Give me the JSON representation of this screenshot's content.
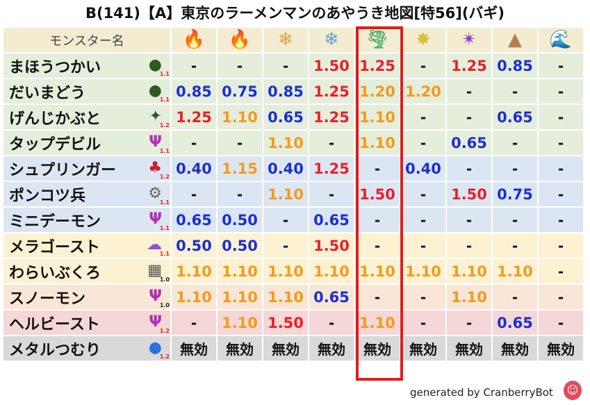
{
  "title": "B(141)【A】東京のラーメンマンのあやうき地図[特56](バギ)",
  "header": {
    "name_label": "モンスター名",
    "elements": [
      {
        "icon": "fire-ball-icon",
        "glyph": "🔥",
        "color": "#e8452a"
      },
      {
        "icon": "fire-icon",
        "glyph": "🔥",
        "color": "#e8452a"
      },
      {
        "icon": "ice-crystal-icon",
        "glyph": "❄",
        "color": "#f0a03a"
      },
      {
        "icon": "snowflake-icon",
        "glyph": "❄",
        "color": "#6aa2d8"
      },
      {
        "icon": "tornado-icon",
        "glyph": "🌪",
        "color": "#4fb06c"
      },
      {
        "icon": "light-burst-icon",
        "glyph": "✸",
        "color": "#d9c23a"
      },
      {
        "icon": "dark-swirl-icon",
        "glyph": "✴",
        "color": "#8a35c8"
      },
      {
        "icon": "rock-icon",
        "glyph": "▲",
        "color": "#b08050"
      },
      {
        "icon": "wave-icon",
        "glyph": "🌊",
        "color": "#2a6fd6"
      }
    ]
  },
  "rows": [
    {
      "name": "まほうつかい",
      "icon": "green-hood-icon",
      "glyph": "●",
      "icon_color": "#2d5a1e",
      "level": "1.1",
      "level_color": "red",
      "bg": "green",
      "cells": [
        {
          "t": "-",
          "c": "dash"
        },
        {
          "t": "-",
          "c": "dash"
        },
        {
          "t": "-",
          "c": "dash"
        },
        {
          "t": "1.50",
          "c": "red"
        },
        {
          "t": "1.25",
          "c": "red"
        },
        {
          "t": "-",
          "c": "dash"
        },
        {
          "t": "1.25",
          "c": "red"
        },
        {
          "t": "0.85",
          "c": "blue"
        },
        {
          "t": "-",
          "c": "dash"
        }
      ]
    },
    {
      "name": "だいまどう",
      "icon": "green-hood-icon",
      "glyph": "●",
      "icon_color": "#2d5a1e",
      "level": "1.1",
      "level_color": "red",
      "bg": "green",
      "cells": [
        {
          "t": "0.85",
          "c": "blue"
        },
        {
          "t": "0.75",
          "c": "blue"
        },
        {
          "t": "0.85",
          "c": "blue"
        },
        {
          "t": "1.25",
          "c": "red"
        },
        {
          "t": "1.20",
          "c": "orange"
        },
        {
          "t": "1.20",
          "c": "orange"
        },
        {
          "t": "-",
          "c": "dash"
        },
        {
          "t": "-",
          "c": "dash"
        },
        {
          "t": "-",
          "c": "dash"
        }
      ]
    },
    {
      "name": "げんじかぶと",
      "icon": "beetle-icon",
      "glyph": "✦",
      "icon_color": "#2d5a40",
      "level": "1.2",
      "level_color": "red",
      "bg": "green",
      "cells": [
        {
          "t": "1.25",
          "c": "red"
        },
        {
          "t": "1.10",
          "c": "orange"
        },
        {
          "t": "0.65",
          "c": "blue"
        },
        {
          "t": "1.25",
          "c": "red"
        },
        {
          "t": "1.10",
          "c": "orange"
        },
        {
          "t": "-",
          "c": "dash"
        },
        {
          "t": "-",
          "c": "dash"
        },
        {
          "t": "0.65",
          "c": "blue"
        },
        {
          "t": "-",
          "c": "dash"
        }
      ]
    },
    {
      "name": "タップデビル",
      "icon": "trident-icon",
      "glyph": "Ψ",
      "icon_color": "#b030b0",
      "level": "1.1",
      "level_color": "red",
      "bg": "green",
      "cells": [
        {
          "t": "-",
          "c": "dash"
        },
        {
          "t": "-",
          "c": "dash"
        },
        {
          "t": "1.10",
          "c": "orange"
        },
        {
          "t": "-",
          "c": "dash"
        },
        {
          "t": "1.10",
          "c": "orange"
        },
        {
          "t": "-",
          "c": "dash"
        },
        {
          "t": "0.65",
          "c": "blue"
        },
        {
          "t": "-",
          "c": "dash"
        },
        {
          "t": "-",
          "c": "dash"
        }
      ]
    },
    {
      "name": "シュプリンガー",
      "icon": "dragon-icon",
      "glyph": "♣",
      "icon_color": "#c8202a",
      "level": "1.2",
      "level_color": "red",
      "bg": "blue",
      "cells": [
        {
          "t": "0.40",
          "c": "blue"
        },
        {
          "t": "1.15",
          "c": "orange"
        },
        {
          "t": "0.40",
          "c": "blue"
        },
        {
          "t": "1.25",
          "c": "red"
        },
        {
          "t": "-",
          "c": "dash"
        },
        {
          "t": "0.40",
          "c": "blue"
        },
        {
          "t": "-",
          "c": "dash"
        },
        {
          "t": "-",
          "c": "dash"
        },
        {
          "t": "-",
          "c": "dash"
        }
      ]
    },
    {
      "name": "ポンコツ兵",
      "icon": "gear-icon",
      "glyph": "⚙",
      "icon_color": "#666666",
      "level": "1.1",
      "level_color": "red",
      "bg": "blue",
      "cells": [
        {
          "t": "-",
          "c": "dash"
        },
        {
          "t": "-",
          "c": "dash"
        },
        {
          "t": "1.10",
          "c": "orange"
        },
        {
          "t": "-",
          "c": "dash"
        },
        {
          "t": "1.50",
          "c": "red"
        },
        {
          "t": "-",
          "c": "dash"
        },
        {
          "t": "1.50",
          "c": "red"
        },
        {
          "t": "0.75",
          "c": "blue"
        },
        {
          "t": "-",
          "c": "dash"
        }
      ]
    },
    {
      "name": "ミニデーモン",
      "icon": "trident-icon",
      "glyph": "Ψ",
      "icon_color": "#b030b0",
      "level": "1.1",
      "level_color": "red",
      "bg": "blue",
      "cells": [
        {
          "t": "0.65",
          "c": "blue"
        },
        {
          "t": "0.50",
          "c": "blue"
        },
        {
          "t": "-",
          "c": "dash"
        },
        {
          "t": "0.65",
          "c": "blue"
        },
        {
          "t": "-",
          "c": "dash"
        },
        {
          "t": "-",
          "c": "dash"
        },
        {
          "t": "-",
          "c": "dash"
        },
        {
          "t": "-",
          "c": "dash"
        },
        {
          "t": "-",
          "c": "dash"
        }
      ]
    },
    {
      "name": "メラゴースト",
      "icon": "ghost-icon",
      "glyph": "☁",
      "icon_color": "#9050d0",
      "level": "1.1",
      "level_color": "red",
      "bg": "yellow",
      "cells": [
        {
          "t": "0.50",
          "c": "blue"
        },
        {
          "t": "0.50",
          "c": "blue"
        },
        {
          "t": "-",
          "c": "dash"
        },
        {
          "t": "1.50",
          "c": "red"
        },
        {
          "t": "-",
          "c": "dash"
        },
        {
          "t": "-",
          "c": "dash"
        },
        {
          "t": "-",
          "c": "dash"
        },
        {
          "t": "-",
          "c": "dash"
        },
        {
          "t": "-",
          "c": "dash"
        }
      ]
    },
    {
      "name": "わらいぶくろ",
      "icon": "brick-wall-icon",
      "glyph": "▦",
      "icon_color": "#555555",
      "level": "1.0",
      "level_color": "black",
      "bg": "yellow",
      "cells": [
        {
          "t": "1.10",
          "c": "orange"
        },
        {
          "t": "1.10",
          "c": "orange"
        },
        {
          "t": "1.10",
          "c": "orange"
        },
        {
          "t": "1.10",
          "c": "orange"
        },
        {
          "t": "1.10",
          "c": "orange"
        },
        {
          "t": "1.10",
          "c": "orange"
        },
        {
          "t": "1.10",
          "c": "orange"
        },
        {
          "t": "1.10",
          "c": "orange"
        },
        {
          "t": "-",
          "c": "dash"
        }
      ]
    },
    {
      "name": "スノーモン",
      "icon": "trident-icon",
      "glyph": "Ψ",
      "icon_color": "#b030b0",
      "level": "1.0",
      "level_color": "black",
      "bg": "orange",
      "cells": [
        {
          "t": "1.10",
          "c": "orange"
        },
        {
          "t": "1.10",
          "c": "orange"
        },
        {
          "t": "1.10",
          "c": "orange"
        },
        {
          "t": "0.65",
          "c": "blue"
        },
        {
          "t": "-",
          "c": "dash"
        },
        {
          "t": "-",
          "c": "dash"
        },
        {
          "t": "1.10",
          "c": "orange"
        },
        {
          "t": "-",
          "c": "dash"
        },
        {
          "t": "-",
          "c": "dash"
        }
      ]
    },
    {
      "name": "ヘルビースト",
      "icon": "trident-icon",
      "glyph": "Ψ",
      "icon_color": "#b030b0",
      "level": "1.2",
      "level_color": "red",
      "bg": "pink",
      "cells": [
        {
          "t": "-",
          "c": "dash"
        },
        {
          "t": "1.10",
          "c": "orange"
        },
        {
          "t": "1.50",
          "c": "red"
        },
        {
          "t": "-",
          "c": "dash"
        },
        {
          "t": "1.10",
          "c": "orange"
        },
        {
          "t": "-",
          "c": "dash"
        },
        {
          "t": "-",
          "c": "dash"
        },
        {
          "t": "0.65",
          "c": "blue"
        },
        {
          "t": "-",
          "c": "dash"
        }
      ]
    },
    {
      "name": "メタルつむり",
      "icon": "slime-icon",
      "glyph": "●",
      "icon_color": "#2a70e0",
      "level": "1.2",
      "level_color": "red",
      "bg": "gray",
      "cells": [
        {
          "t": "無効",
          "c": "mu"
        },
        {
          "t": "無効",
          "c": "mu"
        },
        {
          "t": "無効",
          "c": "mu"
        },
        {
          "t": "無効",
          "c": "mu"
        },
        {
          "t": "無効",
          "c": "mu"
        },
        {
          "t": "無効",
          "c": "mu"
        },
        {
          "t": "無効",
          "c": "mu"
        },
        {
          "t": "無効",
          "c": "mu"
        },
        {
          "t": "無効",
          "c": "mu"
        }
      ]
    }
  ],
  "footer": {
    "text": "generated by CranberryBot",
    "icon": "cranberry-bot-icon",
    "glyph": "☺"
  },
  "colors": {
    "red": "#e8202a",
    "orange": "#f39a1d",
    "blue": "#1c2fd0",
    "highlight": "#e21c1c"
  }
}
